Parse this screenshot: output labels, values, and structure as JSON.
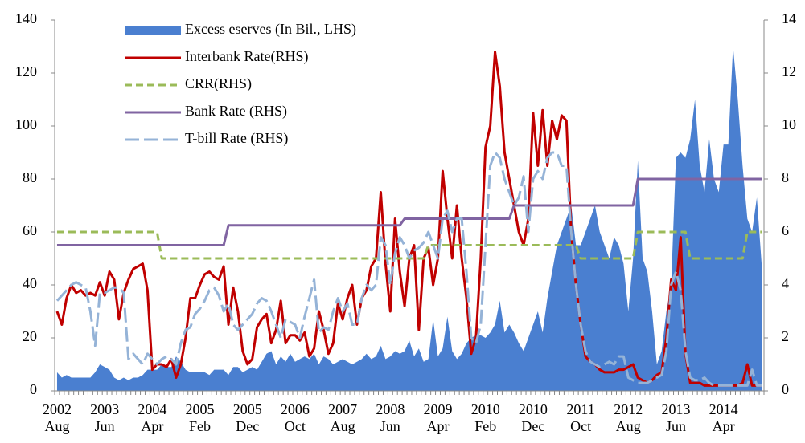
{
  "chart_data": {
    "type": "line",
    "categories": [
      "2002 Aug",
      null,
      null,
      null,
      null,
      null,
      null,
      null,
      null,
      null,
      "2003 Jun",
      null,
      null,
      null,
      null,
      null,
      null,
      null,
      null,
      null,
      "2004 Apr",
      null,
      null,
      null,
      null,
      null,
      null,
      null,
      null,
      null,
      "2005 Feb",
      null,
      null,
      null,
      null,
      null,
      null,
      null,
      null,
      null,
      "2005 Dec",
      null,
      null,
      null,
      null,
      null,
      null,
      null,
      null,
      null,
      "2006 Oct",
      null,
      null,
      null,
      null,
      null,
      null,
      null,
      null,
      null,
      "2007 Aug",
      null,
      null,
      null,
      null,
      null,
      null,
      null,
      null,
      null,
      "2008 Jun",
      null,
      null,
      null,
      null,
      null,
      null,
      null,
      null,
      null,
      "2009 Apr",
      null,
      null,
      null,
      null,
      null,
      null,
      null,
      null,
      null,
      "2010 Feb",
      null,
      null,
      null,
      null,
      null,
      null,
      null,
      null,
      null,
      "2010 Dec",
      null,
      null,
      null,
      null,
      null,
      null,
      null,
      null,
      null,
      "2011 Oct",
      null,
      null,
      null,
      null,
      null,
      null,
      null,
      null,
      null,
      "2012 Aug",
      null,
      null,
      null,
      null,
      null,
      null,
      null,
      null,
      null,
      "2013 Jun",
      null,
      null,
      null,
      null,
      null,
      null,
      null,
      null,
      null,
      "2014 Apr",
      null,
      null,
      null,
      null,
      null,
      null,
      null,
      null
    ],
    "ylim": [
      0,
      140
    ],
    "yticks": [
      0,
      20,
      40,
      60,
      80,
      100,
      120,
      140
    ],
    "y2lim": [
      0,
      14
    ],
    "y2ticks": [
      0,
      2,
      4,
      6,
      8,
      10,
      12,
      14
    ],
    "series": [
      {
        "name": "Excess eserves (In Bil., LHS)",
        "type": "area",
        "color": "#4a7fd0",
        "values": [
          7,
          5,
          6,
          5,
          5,
          5,
          5,
          5,
          7,
          10,
          9,
          8,
          5,
          4,
          5,
          4,
          5,
          5,
          6,
          8,
          8,
          8,
          10,
          9,
          9,
          13,
          11,
          8,
          7,
          7,
          7,
          7,
          6,
          8,
          8,
          8,
          6,
          9,
          9,
          7,
          8,
          9,
          8,
          11,
          14,
          15,
          10,
          13,
          11,
          14,
          11,
          12,
          13,
          12,
          14,
          10,
          13,
          12,
          10,
          11,
          12,
          11,
          10,
          11,
          12,
          14,
          12,
          13,
          17,
          12,
          13,
          15,
          14,
          15,
          19,
          13,
          16,
          11,
          12,
          27,
          13,
          16,
          28,
          15,
          12,
          14,
          18,
          20,
          21,
          21,
          20,
          22,
          25,
          34,
          22,
          25,
          22,
          18,
          15,
          20,
          25,
          30,
          22,
          35,
          45,
          55,
          60,
          65,
          70,
          55,
          55,
          60,
          65,
          70,
          60,
          55,
          50,
          58,
          55,
          48,
          30,
          50,
          87,
          50,
          45,
          30,
          10,
          15,
          30,
          40,
          88,
          90,
          88,
          95,
          110,
          85,
          75,
          95,
          80,
          75,
          93,
          93,
          130,
          110,
          85,
          65,
          60,
          73,
          48
        ]
      },
      {
        "name": "Interbank Rate(RHS)",
        "type": "line",
        "axis": "y2",
        "color": "#c00000",
        "values": [
          3.0,
          2.5,
          3.5,
          4.0,
          3.7,
          3.8,
          3.6,
          3.7,
          3.6,
          4.1,
          3.6,
          4.5,
          4.2,
          2.7,
          3.7,
          4.2,
          4.6,
          4.7,
          4.8,
          3.8,
          0.8,
          1.0,
          1.0,
          0.9,
          1.2,
          0.5,
          1.0,
          2.0,
          3.5,
          3.5,
          4.0,
          4.4,
          4.5,
          4.3,
          4.2,
          4.7,
          2.5,
          3.9,
          3.0,
          1.5,
          1.0,
          1.2,
          2.4,
          2.7,
          2.9,
          1.8,
          2.3,
          3.4,
          1.8,
          2.1,
          2.1,
          1.9,
          2.2,
          1.3,
          1.6,
          3.0,
          2.3,
          1.4,
          1.8,
          3.3,
          2.7,
          3.5,
          4.0,
          2.5,
          3.5,
          3.8,
          4.7,
          5.0,
          7.5,
          4.8,
          3.0,
          6.5,
          4.5,
          3.2,
          5.0,
          5.5,
          2.3,
          5.0,
          5.4,
          4.0,
          5.0,
          8.3,
          6.5,
          5.0,
          7.0,
          5.0,
          3.5,
          1.4,
          2.0,
          5.0,
          9.2,
          10.0,
          12.8,
          11.5,
          9.0,
          8.0,
          7.0,
          6.0,
          5.5,
          6.5,
          10.5,
          8.5,
          10.6,
          8.5,
          10.2,
          9.5,
          10.4,
          10.2,
          6.0,
          4.0,
          2.5,
          1.3,
          1.1,
          1.0,
          0.8,
          0.7,
          0.7,
          0.7,
          0.8,
          0.8,
          0.9,
          1.0,
          0.5,
          0.4,
          0.3,
          0.4,
          0.6,
          0.7,
          2.0,
          4.2,
          3.8,
          5.8,
          1.4,
          0.3,
          0.3,
          0.3,
          0.2,
          0.2,
          0.2,
          0.2,
          0.2,
          0.2,
          0.2,
          0.2,
          0.3,
          1.0,
          0.2,
          0.2,
          0.2
        ]
      },
      {
        "name": "CRR(RHS)",
        "type": "line",
        "axis": "y2",
        "color": "#9bbb59",
        "dash": "9,5",
        "values": [
          6,
          6,
          6,
          6,
          6,
          6,
          6,
          6,
          6,
          6,
          6,
          6,
          6,
          6,
          6,
          6,
          6,
          6,
          6,
          6,
          6,
          6,
          5,
          5,
          5,
          5,
          5,
          5,
          5,
          5,
          5,
          5,
          5,
          5,
          5,
          5,
          5,
          5,
          5,
          5,
          5,
          5,
          5,
          5,
          5,
          5,
          5,
          5,
          5,
          5,
          5,
          5,
          5,
          5,
          5,
          5,
          5,
          5,
          5,
          5,
          5,
          5,
          5,
          5,
          5,
          5,
          5,
          5,
          5,
          5,
          5,
          5,
          5,
          5,
          5,
          5,
          5,
          5,
          5.5,
          5.5,
          5.5,
          5.5,
          5.5,
          5.5,
          5.5,
          5.5,
          5.5,
          5.5,
          5.5,
          5.5,
          5.5,
          5.5,
          5.5,
          5.5,
          5.5,
          5.5,
          5.5,
          5.5,
          5.5,
          5.5,
          5.5,
          5.5,
          5.5,
          5.5,
          5.5,
          5.5,
          5.5,
          5.5,
          5.5,
          5.5,
          5,
          5,
          5,
          5,
          5,
          5,
          5,
          5,
          5,
          5,
          5,
          5,
          6,
          6,
          6,
          6,
          6,
          6,
          6,
          6,
          6,
          6,
          6,
          5,
          5,
          5,
          5,
          5,
          5,
          5,
          5,
          5,
          5,
          5,
          5,
          6,
          6,
          6,
          6
        ]
      },
      {
        "name": "Bank Rate (RHS)",
        "type": "line",
        "axis": "y2",
        "color": "#8064a2",
        "values": [
          5.5,
          5.5,
          5.5,
          5.5,
          5.5,
          5.5,
          5.5,
          5.5,
          5.5,
          5.5,
          5.5,
          5.5,
          5.5,
          5.5,
          5.5,
          5.5,
          5.5,
          5.5,
          5.5,
          5.5,
          5.5,
          5.5,
          5.5,
          5.5,
          5.5,
          5.5,
          5.5,
          5.5,
          5.5,
          5.5,
          5.5,
          5.5,
          5.5,
          5.5,
          5.5,
          5.5,
          6.25,
          6.25,
          6.25,
          6.25,
          6.25,
          6.25,
          6.25,
          6.25,
          6.25,
          6.25,
          6.25,
          6.25,
          6.25,
          6.25,
          6.25,
          6.25,
          6.25,
          6.25,
          6.25,
          6.25,
          6.25,
          6.25,
          6.25,
          6.25,
          6.25,
          6.25,
          6.25,
          6.25,
          6.25,
          6.25,
          6.25,
          6.25,
          6.25,
          6.25,
          6.25,
          6.25,
          6.25,
          6.5,
          6.5,
          6.5,
          6.5,
          6.5,
          6.5,
          6.5,
          6.5,
          6.5,
          6.5,
          6.5,
          6.5,
          6.5,
          6.5,
          6.5,
          6.5,
          6.5,
          6.5,
          6.5,
          6.5,
          6.5,
          6.5,
          6.5,
          7,
          7,
          7,
          7,
          7,
          7,
          7,
          7,
          7,
          7,
          7,
          7,
          7,
          7,
          7,
          7,
          7,
          7,
          7,
          7,
          7,
          7,
          7,
          7,
          7,
          7,
          8,
          8,
          8,
          8,
          8,
          8,
          8,
          8,
          8,
          8,
          8,
          8,
          8,
          8,
          8,
          8,
          8,
          8,
          8,
          8,
          8,
          8,
          8,
          8,
          8,
          8,
          8
        ]
      },
      {
        "name": "T-bill Rate (RHS)",
        "type": "line",
        "axis": "y2",
        "color": "#95b3d7",
        "dash": "18,6",
        "values": [
          3.4,
          3.6,
          3.8,
          4.0,
          4.1,
          4.0,
          3.9,
          3.0,
          1.7,
          3.7,
          3.7,
          3.8,
          3.9,
          3.9,
          3.7,
          1.2,
          1.4,
          1.2,
          1.0,
          1.4,
          1.2,
          1.0,
          1.2,
          1.3,
          1.2,
          1.0,
          1.8,
          2.3,
          2.4,
          2.9,
          3.1,
          3.4,
          3.8,
          3.9,
          3.6,
          3.0,
          3.3,
          2.5,
          2.3,
          2.5,
          2.7,
          2.9,
          3.3,
          3.5,
          3.4,
          3.0,
          2.5,
          2.0,
          2.7,
          2.6,
          2.5,
          2.0,
          2.8,
          3.5,
          4.2,
          2.2,
          2.4,
          2.3,
          3.0,
          3.5,
          3.0,
          3.3,
          2.5,
          2.5,
          3.5,
          4.0,
          3.8,
          4.0,
          5.8,
          5.5,
          4.0,
          5.2,
          5.8,
          5.5,
          5.0,
          5.3,
          5.4,
          5.6,
          6.0,
          5.5,
          5.0,
          6.5,
          6.8,
          6.0,
          6.5,
          6.5,
          4.5,
          2.0,
          1.8,
          2.5,
          5.5,
          8.5,
          9.0,
          8.8,
          8.0,
          7.5,
          7.0,
          7.3,
          8.1,
          6.0,
          8.0,
          8.3,
          8.0,
          8.8,
          9.0,
          9.0,
          8.5,
          8.5,
          6.0,
          4.0,
          2.5,
          1.5,
          1.1,
          1.0,
          0.9,
          1.0,
          1.1,
          1.0,
          1.3,
          1.3,
          0.5,
          0.4,
          0.3,
          0.3,
          0.3,
          0.4,
          0.5,
          0.6,
          1.5,
          4.0,
          4.5,
          3.8,
          1.5,
          0.5,
          0.4,
          0.4,
          0.5,
          0.3,
          0.2,
          0.2,
          0.2,
          0.2,
          0.2,
          0.2,
          0.2,
          0.2,
          0.8,
          0.2,
          0.2
        ]
      }
    ]
  }
}
